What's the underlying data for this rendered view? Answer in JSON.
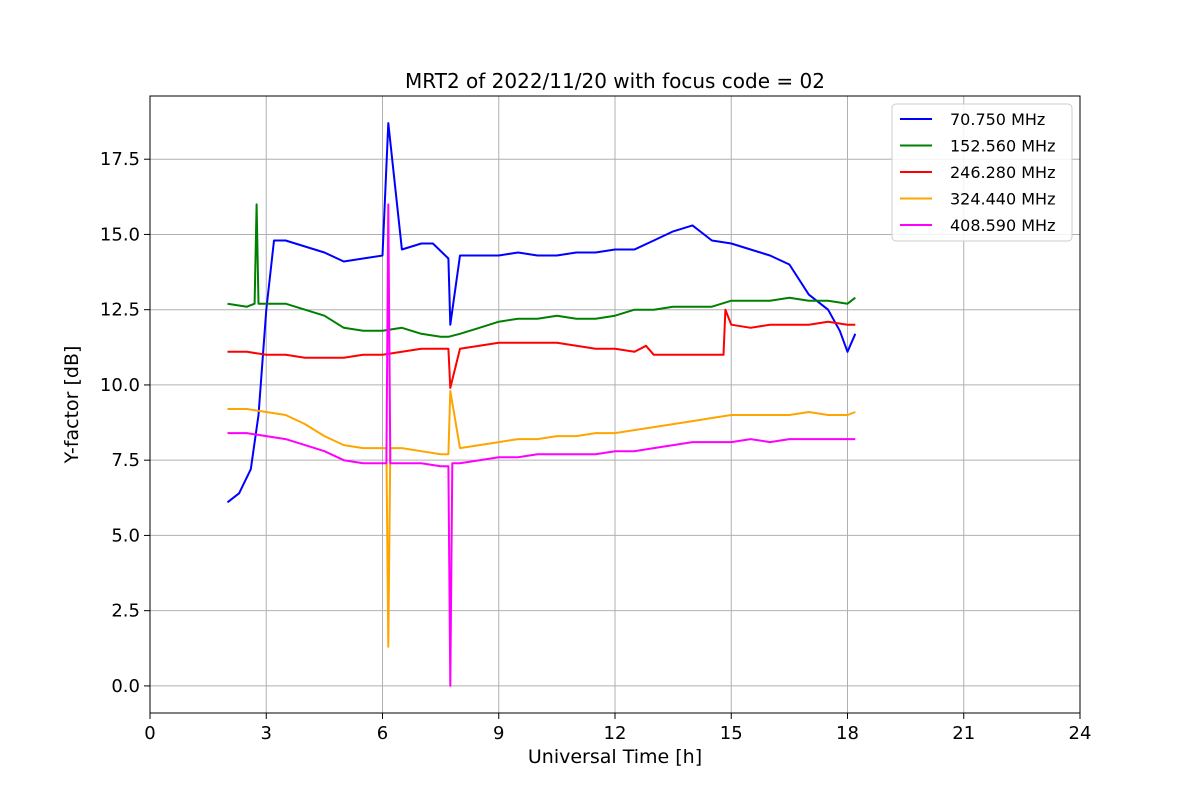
{
  "chart_data": {
    "type": "line",
    "title": "MRT2 of 2022/11/20 with focus code = 02",
    "xlabel": "Universal Time [h]",
    "ylabel": "Y-factor [dB]",
    "xlim": [
      0,
      24
    ],
    "ylim": [
      -0.9,
      19.6
    ],
    "xticks": [
      0,
      3,
      6,
      9,
      12,
      15,
      18,
      21,
      24
    ],
    "yticks": [
      0.0,
      2.5,
      5.0,
      7.5,
      10.0,
      12.5,
      15.0,
      17.5
    ],
    "ytick_labels": [
      "0.0",
      "2.5",
      "5.0",
      "7.5",
      "10.0",
      "12.5",
      "15.0",
      "17.5"
    ],
    "grid": true,
    "legend_position": "top-right",
    "series": [
      {
        "name": " 70.750 MHz",
        "color": "#0000ff",
        "x": [
          2.0,
          2.3,
          2.6,
          2.8,
          3.0,
          3.2,
          3.5,
          4.0,
          4.5,
          5.0,
          5.5,
          6.0,
          6.15,
          6.5,
          7.0,
          7.3,
          7.7,
          7.75,
          8.0,
          8.5,
          9.0,
          9.5,
          10.0,
          10.5,
          11.0,
          11.5,
          12.0,
          12.5,
          13.0,
          13.5,
          14.0,
          14.5,
          15.0,
          15.5,
          16.0,
          16.5,
          17.0,
          17.5,
          17.8,
          18.0,
          18.2
        ],
        "y": [
          6.1,
          6.4,
          7.2,
          9.0,
          12.5,
          14.8,
          14.8,
          14.6,
          14.4,
          14.1,
          14.2,
          14.3,
          18.7,
          14.5,
          14.7,
          14.7,
          14.2,
          12.0,
          14.3,
          14.3,
          14.3,
          14.4,
          14.3,
          14.3,
          14.4,
          14.4,
          14.5,
          14.5,
          14.8,
          15.1,
          15.3,
          14.8,
          14.7,
          14.5,
          14.3,
          14.0,
          13.0,
          12.5,
          11.8,
          11.1,
          11.7
        ]
      },
      {
        "name": "152.560 MHz",
        "color": "#008000",
        "x": [
          2.0,
          2.5,
          2.7,
          2.75,
          2.8,
          3.0,
          3.5,
          4.0,
          4.5,
          5.0,
          5.5,
          6.0,
          6.5,
          7.0,
          7.5,
          7.7,
          8.0,
          8.5,
          9.0,
          9.5,
          10.0,
          10.5,
          11.0,
          11.5,
          12.0,
          12.5,
          13.0,
          13.5,
          14.0,
          14.5,
          15.0,
          15.5,
          16.0,
          16.5,
          17.0,
          17.5,
          18.0,
          18.2
        ],
        "y": [
          12.7,
          12.6,
          12.7,
          16.0,
          12.7,
          12.7,
          12.7,
          12.5,
          12.3,
          11.9,
          11.8,
          11.8,
          11.9,
          11.7,
          11.6,
          11.6,
          11.7,
          11.9,
          12.1,
          12.2,
          12.2,
          12.3,
          12.2,
          12.2,
          12.3,
          12.5,
          12.5,
          12.6,
          12.6,
          12.6,
          12.8,
          12.8,
          12.8,
          12.9,
          12.8,
          12.8,
          12.7,
          12.9
        ]
      },
      {
        "name": "246.280 MHz",
        "color": "#ff0000",
        "x": [
          2.0,
          2.5,
          3.0,
          3.5,
          4.0,
          4.5,
          5.0,
          5.5,
          6.0,
          6.5,
          7.0,
          7.5,
          7.7,
          7.75,
          8.0,
          8.5,
          9.0,
          9.5,
          10.0,
          10.5,
          11.0,
          11.5,
          12.0,
          12.5,
          12.8,
          13.0,
          13.5,
          14.0,
          14.5,
          14.8,
          14.85,
          15.0,
          15.5,
          16.0,
          16.5,
          17.0,
          17.5,
          18.0,
          18.2
        ],
        "y": [
          11.1,
          11.1,
          11.0,
          11.0,
          10.9,
          10.9,
          10.9,
          11.0,
          11.0,
          11.1,
          11.2,
          11.2,
          11.2,
          9.9,
          11.2,
          11.3,
          11.4,
          11.4,
          11.4,
          11.4,
          11.3,
          11.2,
          11.2,
          11.1,
          11.3,
          11.0,
          11.0,
          11.0,
          11.0,
          11.0,
          12.5,
          12.0,
          11.9,
          12.0,
          12.0,
          12.0,
          12.1,
          12.0,
          12.0
        ]
      },
      {
        "name": "324.440 MHz",
        "color": "#ffa500",
        "x": [
          2.0,
          2.5,
          3.0,
          3.5,
          4.0,
          4.5,
          5.0,
          5.5,
          6.0,
          6.1,
          6.15,
          6.2,
          6.5,
          7.0,
          7.5,
          7.7,
          7.75,
          8.0,
          8.5,
          9.0,
          9.5,
          10.0,
          10.5,
          11.0,
          11.5,
          12.0,
          12.5,
          13.0,
          13.5,
          14.0,
          14.5,
          15.0,
          15.5,
          16.0,
          16.5,
          17.0,
          17.5,
          18.0,
          18.2
        ],
        "y": [
          9.2,
          9.2,
          9.1,
          9.0,
          8.7,
          8.3,
          8.0,
          7.9,
          7.9,
          7.9,
          1.3,
          7.9,
          7.9,
          7.8,
          7.7,
          7.7,
          9.8,
          7.9,
          8.0,
          8.1,
          8.2,
          8.2,
          8.3,
          8.3,
          8.4,
          8.4,
          8.5,
          8.6,
          8.7,
          8.8,
          8.9,
          9.0,
          9.0,
          9.0,
          9.0,
          9.1,
          9.0,
          9.0,
          9.1
        ]
      },
      {
        "name": "408.590 MHz",
        "color": "#ff00ff",
        "x": [
          2.0,
          2.5,
          3.0,
          3.5,
          4.0,
          4.5,
          5.0,
          5.5,
          6.0,
          6.1,
          6.15,
          6.2,
          6.5,
          7.0,
          7.5,
          7.7,
          7.75,
          7.8,
          8.0,
          8.5,
          9.0,
          9.5,
          10.0,
          10.5,
          11.0,
          11.5,
          12.0,
          12.5,
          13.0,
          13.5,
          14.0,
          14.5,
          15.0,
          15.5,
          16.0,
          16.5,
          17.0,
          17.5,
          18.0,
          18.2
        ],
        "y": [
          8.4,
          8.4,
          8.3,
          8.2,
          8.0,
          7.8,
          7.5,
          7.4,
          7.4,
          7.4,
          16.0,
          7.4,
          7.4,
          7.4,
          7.3,
          7.3,
          0.0,
          7.4,
          7.4,
          7.5,
          7.6,
          7.6,
          7.7,
          7.7,
          7.7,
          7.7,
          7.8,
          7.8,
          7.9,
          8.0,
          8.1,
          8.1,
          8.1,
          8.2,
          8.1,
          8.2,
          8.2,
          8.2,
          8.2,
          8.2
        ]
      }
    ]
  }
}
